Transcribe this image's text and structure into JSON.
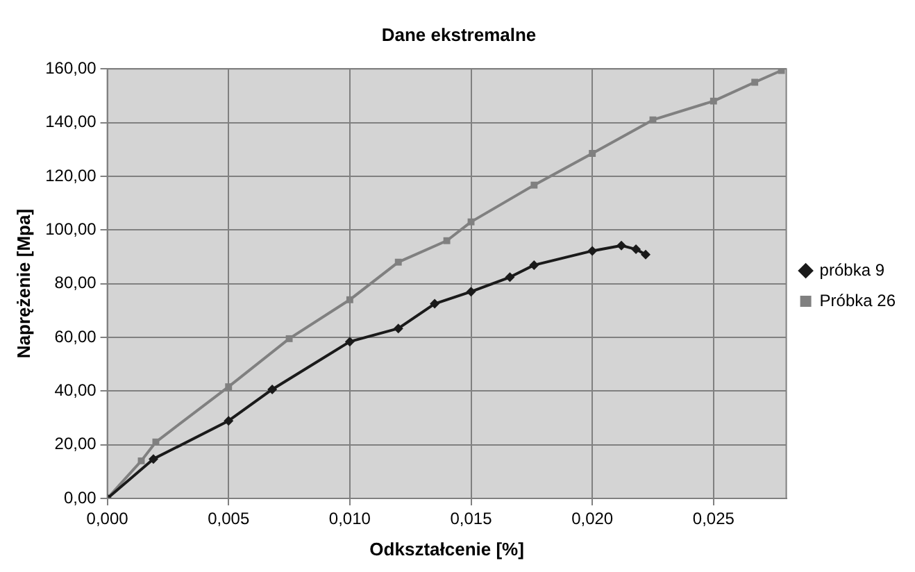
{
  "chart_data": {
    "type": "line",
    "title": "Dane ekstremalne",
    "xlabel": "Odkształcenie [%]",
    "ylabel": "Naprężenie [Mpa]",
    "xlim": [
      0,
      0.028
    ],
    "xticks": [
      {
        "value": 0,
        "label": "0,000"
      },
      {
        "value": 0.005,
        "label": "0,005"
      },
      {
        "value": 0.01,
        "label": "0,010"
      },
      {
        "value": 0.015,
        "label": "0,015"
      },
      {
        "value": 0.02,
        "label": "0,020"
      },
      {
        "value": 0.025,
        "label": "0,025"
      }
    ],
    "ylim": [
      0,
      160
    ],
    "yticks": [
      {
        "value": 0,
        "label": "0,00"
      },
      {
        "value": 20,
        "label": "20,00"
      },
      {
        "value": 40,
        "label": "40,00"
      },
      {
        "value": 60,
        "label": "60,00"
      },
      {
        "value": 80,
        "label": "80,00"
      },
      {
        "value": 100,
        "label": "100,00"
      },
      {
        "value": 120,
        "label": "120,00"
      },
      {
        "value": 140,
        "label": "140,00"
      },
      {
        "value": 160,
        "label": "160,00"
      }
    ],
    "grid": true,
    "legend": "right",
    "series": [
      {
        "name": "próbka 9",
        "color": "#1a1a1a",
        "marker": "diamond",
        "x": [
          0,
          0.0019,
          0.005,
          0.0068,
          0.01,
          0.012,
          0.0135,
          0.015,
          0.0166,
          0.0176,
          0.02,
          0.0212,
          0.0218,
          0.0222
        ],
        "values": [
          0,
          14.7,
          28.9,
          40.6,
          58.4,
          63.3,
          72.5,
          77,
          82.4,
          86.9,
          92.2,
          94.2,
          92.8,
          90.8
        ]
      },
      {
        "name": "Próbka 26",
        "color": "#808080",
        "marker": "square",
        "x": [
          0,
          0.0014,
          0.002,
          0.005,
          0.0075,
          0.01,
          0.012,
          0.014,
          0.015,
          0.0176,
          0.02,
          0.0225,
          0.025,
          0.0267,
          0.0278
        ],
        "values": [
          0,
          14,
          21,
          41.6,
          59.5,
          74,
          88,
          96,
          103,
          116.7,
          128.5,
          141,
          148,
          155,
          159.4
        ]
      }
    ]
  }
}
